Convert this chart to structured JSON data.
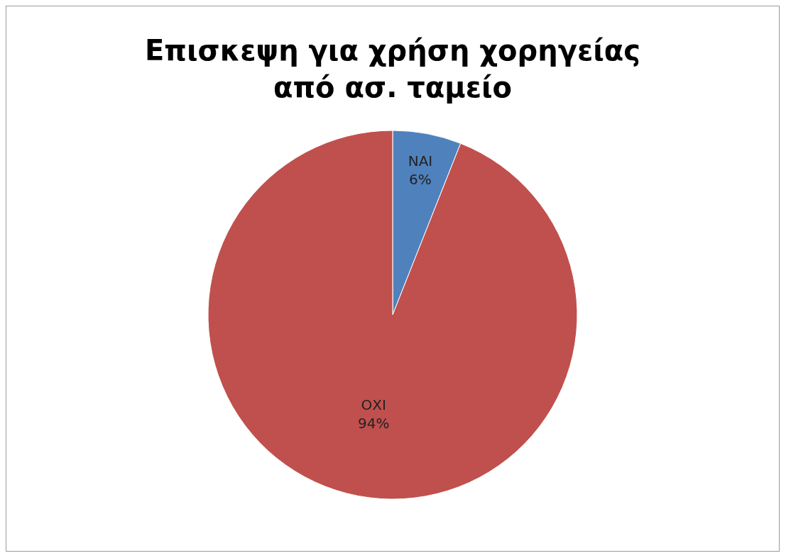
{
  "chart_data": {
    "type": "pie",
    "title": "Επισκεψη για χρήση χορηγείας από ασ. ταμείο",
    "categories": [
      "ΝΑΙ",
      "ΟΧΙ"
    ],
    "values": [
      6,
      94
    ],
    "value_labels": [
      "6%",
      "94%"
    ],
    "colors": [
      "#4f81bd",
      "#c0504d"
    ],
    "legend": false
  }
}
